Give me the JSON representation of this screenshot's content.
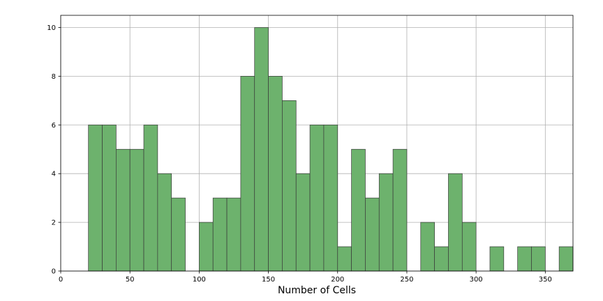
{
  "chart_data": {
    "type": "bar",
    "subtype": "histogram",
    "title": "",
    "xlabel": "Number of Cells",
    "ylabel": "",
    "xlim": [
      0,
      370
    ],
    "ylim": [
      0,
      10.5
    ],
    "xticks": [
      0,
      50,
      100,
      150,
      200,
      250,
      300,
      350
    ],
    "yticks": [
      0,
      2,
      4,
      6,
      8,
      10
    ],
    "grid": true,
    "bar_color": "#6db26d",
    "edge_color": "#3a3a3a",
    "bins": [
      {
        "x0": 20,
        "x1": 30,
        "count": 6
      },
      {
        "x0": 30,
        "x1": 40,
        "count": 6
      },
      {
        "x0": 40,
        "x1": 50,
        "count": 5
      },
      {
        "x0": 50,
        "x1": 60,
        "count": 5
      },
      {
        "x0": 60,
        "x1": 70,
        "count": 6
      },
      {
        "x0": 70,
        "x1": 80,
        "count": 4
      },
      {
        "x0": 80,
        "x1": 90,
        "count": 3
      },
      {
        "x0": 90,
        "x1": 100,
        "count": 0
      },
      {
        "x0": 100,
        "x1": 110,
        "count": 2
      },
      {
        "x0": 110,
        "x1": 120,
        "count": 3
      },
      {
        "x0": 120,
        "x1": 130,
        "count": 3
      },
      {
        "x0": 130,
        "x1": 140,
        "count": 8
      },
      {
        "x0": 140,
        "x1": 150,
        "count": 10
      },
      {
        "x0": 150,
        "x1": 160,
        "count": 8
      },
      {
        "x0": 160,
        "x1": 170,
        "count": 7
      },
      {
        "x0": 170,
        "x1": 180,
        "count": 4
      },
      {
        "x0": 180,
        "x1": 190,
        "count": 6
      },
      {
        "x0": 190,
        "x1": 200,
        "count": 6
      },
      {
        "x0": 200,
        "x1": 210,
        "count": 1
      },
      {
        "x0": 210,
        "x1": 220,
        "count": 5
      },
      {
        "x0": 220,
        "x1": 230,
        "count": 3
      },
      {
        "x0": 230,
        "x1": 240,
        "count": 4
      },
      {
        "x0": 240,
        "x1": 250,
        "count": 5
      },
      {
        "x0": 250,
        "x1": 260,
        "count": 0
      },
      {
        "x0": 260,
        "x1": 270,
        "count": 2
      },
      {
        "x0": 270,
        "x1": 280,
        "count": 1
      },
      {
        "x0": 280,
        "x1": 290,
        "count": 4
      },
      {
        "x0": 290,
        "x1": 300,
        "count": 2
      },
      {
        "x0": 300,
        "x1": 310,
        "count": 0
      },
      {
        "x0": 310,
        "x1": 320,
        "count": 1
      },
      {
        "x0": 320,
        "x1": 330,
        "count": 0
      },
      {
        "x0": 330,
        "x1": 340,
        "count": 1
      },
      {
        "x0": 340,
        "x1": 350,
        "count": 1
      },
      {
        "x0": 350,
        "x1": 360,
        "count": 0
      },
      {
        "x0": 360,
        "x1": 370,
        "count": 1
      }
    ]
  }
}
